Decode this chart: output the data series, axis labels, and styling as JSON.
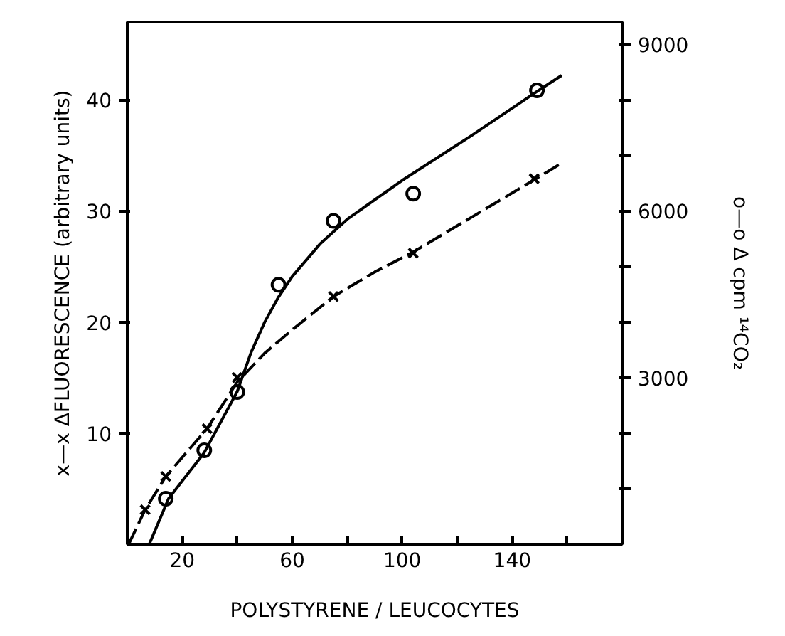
{
  "chart_data": {
    "type": "scatter",
    "xlabel": "POLYSTYRENE / LEUCOCYTES",
    "ylabel": "x—x ΔFLUORESCENCE (arbitrary units)",
    "y2label": "o—o Δ cpm ¹⁴CO₂",
    "xlim": [
      0,
      180
    ],
    "ylim": [
      0,
      47
    ],
    "y2lim": [
      0,
      9400
    ],
    "xticks": [
      20,
      {
        "value": 40,
        "label": null
      },
      60,
      {
        "value": 80,
        "label": null
      },
      100,
      {
        "value": 120,
        "label": null
      },
      140,
      {
        "value": 160,
        "label": null
      }
    ],
    "yticks": [
      10,
      20,
      30,
      40
    ],
    "y2ticks": [
      {
        "value": 1000,
        "label": null
      },
      {
        "value": 2000,
        "label": null
      },
      3000,
      {
        "value": 4000,
        "label": null
      },
      {
        "value": 5000,
        "label": null
      },
      6000,
      {
        "value": 7000,
        "label": null
      },
      {
        "value": 8000,
        "label": null
      },
      9000
    ],
    "grid": false,
    "series": [
      {
        "marker": "cross",
        "color": "#000000",
        "x": [
          6.5,
          14,
          29,
          40,
          75,
          104,
          148
        ],
        "values": [
          3.1,
          6.1,
          10.4,
          15.0,
          22.3,
          26.2,
          32.9
        ]
      },
      {
        "marker": "circle",
        "color": "#000000",
        "axis": "y2",
        "x": [
          14,
          28,
          40,
          55,
          75,
          104,
          149
        ],
        "values": [
          820,
          1690,
          2740,
          4670,
          5820,
          6310,
          8170
        ]
      },
      {
        "type": "line",
        "line_style": "dashed",
        "color": "#000000",
        "x": [
          0.5,
          6.5,
          14,
          29,
          40,
          50,
          60,
          75,
          90,
          104,
          125,
          148,
          158
        ],
        "values": [
          0,
          3.1,
          6.1,
          10.4,
          14.6,
          17.2,
          19.3,
          22.3,
          24.5,
          26.3,
          29.4,
          32.8,
          34.3
        ]
      },
      {
        "type": "line",
        "line_style": "solid",
        "color": "#000000",
        "axis": "y2",
        "x": [
          8,
          15,
          28,
          40,
          45,
          50,
          55,
          60,
          70,
          80,
          100,
          125,
          149,
          158
        ],
        "values": [
          0,
          820,
          1650,
          2750,
          3450,
          4000,
          4450,
          4820,
          5400,
          5850,
          6550,
          7350,
          8150,
          8440
        ]
      }
    ]
  }
}
